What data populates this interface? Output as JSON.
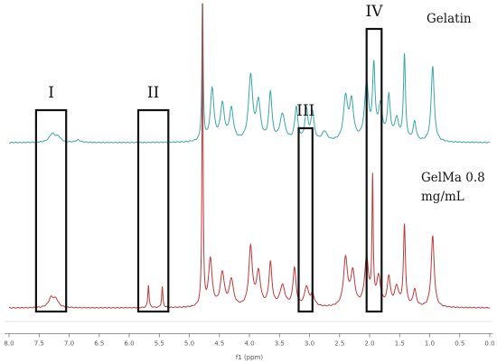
{
  "chart_data": {
    "type": "line",
    "xlabel": "f1 (ppm)",
    "xlim": [
      8.0,
      0.0
    ],
    "x_reversed": true,
    "x_ticks": [
      "8.0",
      "7.5",
      "7.0",
      "6.5",
      "6.0",
      "5.5",
      "5.0",
      "4.5",
      "4.0",
      "3.5",
      "3.0",
      "2.5",
      "2.0",
      "1.5",
      "1.0",
      "0.5",
      "0.0"
    ],
    "grid": false,
    "series": [
      {
        "name": "Gelatin",
        "color": "#3aa6a8",
        "peaks": [
          {
            "ppm": 7.28,
            "height": 0.09,
            "width": 0.06
          },
          {
            "ppm": 7.18,
            "height": 0.05,
            "width": 0.05
          },
          {
            "ppm": 6.85,
            "height": 0.025,
            "width": 0.05
          },
          {
            "ppm": 4.78,
            "height": 1.6,
            "width": 0.012
          },
          {
            "ppm": 4.62,
            "height": 0.55,
            "width": 0.035
          },
          {
            "ppm": 4.45,
            "height": 0.38,
            "width": 0.04
          },
          {
            "ppm": 4.3,
            "height": 0.33,
            "width": 0.04
          },
          {
            "ppm": 3.98,
            "height": 0.68,
            "width": 0.04
          },
          {
            "ppm": 3.85,
            "height": 0.4,
            "width": 0.04
          },
          {
            "ppm": 3.65,
            "height": 0.5,
            "width": 0.03
          },
          {
            "ppm": 3.45,
            "height": 0.28,
            "width": 0.05
          },
          {
            "ppm": 3.22,
            "height": 0.35,
            "width": 0.03
          },
          {
            "ppm": 3.05,
            "height": 0.32,
            "width": 0.03
          },
          {
            "ppm": 2.95,
            "height": 0.3,
            "width": 0.03
          },
          {
            "ppm": 2.75,
            "height": 0.1,
            "width": 0.05
          },
          {
            "ppm": 2.4,
            "height": 0.45,
            "width": 0.04
          },
          {
            "ppm": 2.3,
            "height": 0.4,
            "width": 0.04
          },
          {
            "ppm": 2.05,
            "height": 0.6,
            "width": 0.04
          },
          {
            "ppm": 1.93,
            "height": 0.75,
            "width": 0.025
          },
          {
            "ppm": 1.82,
            "height": 0.35,
            "width": 0.04
          },
          {
            "ppm": 1.68,
            "height": 0.45,
            "width": 0.03
          },
          {
            "ppm": 1.55,
            "height": 0.22,
            "width": 0.04
          },
          {
            "ppm": 1.42,
            "height": 0.9,
            "width": 0.02
          },
          {
            "ppm": 1.25,
            "height": 0.2,
            "width": 0.03
          },
          {
            "ppm": 0.95,
            "height": 0.8,
            "width": 0.03
          }
        ]
      },
      {
        "name": "GelMa 0.8 mg/mL",
        "color": "#c0393b",
        "peaks": [
          {
            "ppm": 7.3,
            "height": 0.1,
            "width": 0.05
          },
          {
            "ppm": 7.22,
            "height": 0.08,
            "width": 0.05
          },
          {
            "ppm": 5.68,
            "height": 0.24,
            "width": 0.012
          },
          {
            "ppm": 5.45,
            "height": 0.22,
            "width": 0.012
          },
          {
            "ppm": 4.78,
            "height": 3.2,
            "width": 0.01
          },
          {
            "ppm": 4.65,
            "height": 0.5,
            "width": 0.035
          },
          {
            "ppm": 4.45,
            "height": 0.35,
            "width": 0.04
          },
          {
            "ppm": 4.3,
            "height": 0.28,
            "width": 0.04
          },
          {
            "ppm": 3.98,
            "height": 0.62,
            "width": 0.035
          },
          {
            "ppm": 3.85,
            "height": 0.35,
            "width": 0.04
          },
          {
            "ppm": 3.65,
            "height": 0.45,
            "width": 0.03
          },
          {
            "ppm": 3.45,
            "height": 0.22,
            "width": 0.05
          },
          {
            "ppm": 3.25,
            "height": 0.4,
            "width": 0.03
          },
          {
            "ppm": 3.05,
            "height": 0.2,
            "width": 0.04
          },
          {
            "ppm": 2.95,
            "height": 0.12,
            "width": 0.04
          },
          {
            "ppm": 2.4,
            "height": 0.5,
            "width": 0.04
          },
          {
            "ppm": 2.28,
            "height": 0.35,
            "width": 0.04
          },
          {
            "ppm": 2.05,
            "height": 0.5,
            "width": 0.04
          },
          {
            "ppm": 1.95,
            "height": 1.3,
            "width": 0.012
          },
          {
            "ppm": 1.85,
            "height": 0.3,
            "width": 0.04
          },
          {
            "ppm": 1.68,
            "height": 0.3,
            "width": 0.03
          },
          {
            "ppm": 1.55,
            "height": 0.2,
            "width": 0.04
          },
          {
            "ppm": 1.42,
            "height": 0.85,
            "width": 0.02
          },
          {
            "ppm": 1.25,
            "height": 0.18,
            "width": 0.03
          },
          {
            "ppm": 0.95,
            "height": 0.75,
            "width": 0.03
          }
        ]
      }
    ],
    "regions": [
      {
        "label": "I",
        "ppm_range": [
          7.55,
          7.05
        ],
        "spans": "both"
      },
      {
        "label": "II",
        "ppm_range": [
          5.85,
          5.35
        ],
        "spans": "both"
      },
      {
        "label": "III",
        "ppm_range": [
          3.18,
          2.95
        ],
        "spans": "lower"
      },
      {
        "label": "IV",
        "ppm_range": [
          2.05,
          1.8
        ],
        "spans": "both"
      }
    ],
    "annotations": [
      "Gelatin",
      "GelMa 0.8",
      "mg/mL"
    ]
  }
}
